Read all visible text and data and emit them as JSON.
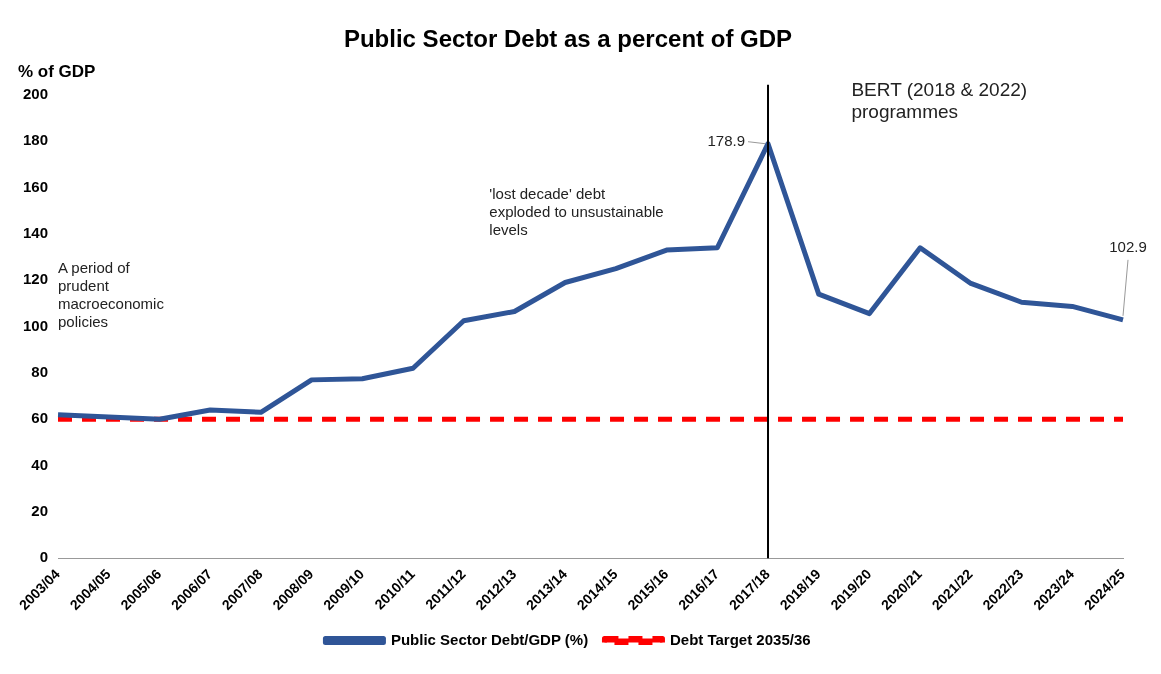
{
  "chart_data": {
    "type": "line",
    "title": "Public Sector Debt as a percent of GDP",
    "ylabel": "% of GDP",
    "categories": [
      "2003/04",
      "2004/05",
      "2005/06",
      "2006/07",
      "2007/08",
      "2008/09",
      "2009/10",
      "2010/11",
      "2011/12",
      "2012/13",
      "2013/14",
      "2014/15",
      "2015/16",
      "2016/17",
      "2017/18",
      "2018/19",
      "2019/20",
      "2020/21",
      "2021/22",
      "2022/23",
      "2023/24",
      "2024/25"
    ],
    "series": [
      {
        "name": "Public Sector Debt/GDP (%)",
        "color": "#2f5597",
        "values": [
          62,
          61,
          60,
          64,
          63,
          77,
          77.5,
          82,
          102.5,
          106.5,
          119,
          125,
          133,
          134,
          178.9,
          114,
          105.6,
          134,
          118.6,
          110.5,
          108.7,
          102.9
        ]
      },
      {
        "name": "Debt Target 2035/36",
        "color": "#ff0000",
        "line_style": "dashed",
        "values": [
          60,
          60,
          60,
          60,
          60,
          60,
          60,
          60,
          60,
          60,
          60,
          60,
          60,
          60,
          60,
          60,
          60,
          60,
          60,
          60,
          60,
          60
        ]
      }
    ],
    "ylim": [
      0,
      200
    ],
    "yticks": [
      0,
      20,
      40,
      60,
      80,
      100,
      120,
      140,
      160,
      180,
      200
    ],
    "grid": false,
    "legend": "bottom",
    "marker": "none",
    "ref_lines": [
      {
        "axis": "x",
        "value": "2017/18",
        "color": "#000000"
      }
    ],
    "annotations": [
      "A period of prudent macroeconomic policies",
      "'lost decade' debt exploded to unsustainable levels",
      "BERT (2018 & 2022) programmes",
      {
        "text": "178.9",
        "x": "2017/18",
        "y": 178.9
      },
      {
        "text": "102.9",
        "x": "2024/25",
        "y": 102.9
      }
    ]
  }
}
